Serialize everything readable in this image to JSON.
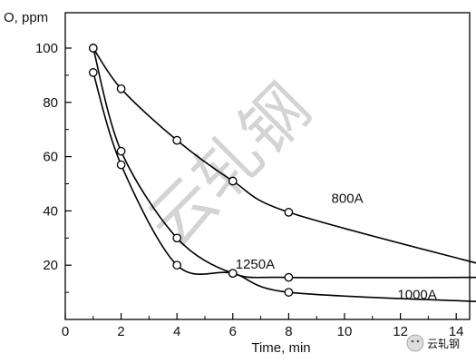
{
  "chart_data": {
    "type": "line",
    "title": "",
    "xlabel": "Time, min",
    "ylabel": "O, ppm",
    "xlim": [
      0,
      15
    ],
    "ylim": [
      0,
      110
    ],
    "x_ticks": [
      0,
      2,
      4,
      6,
      8,
      10,
      12,
      14
    ],
    "y_ticks": [
      20,
      40,
      60,
      80,
      100
    ],
    "grid": false,
    "legend": "none",
    "series": [
      {
        "name": "800A",
        "x": [
          1,
          2,
          4,
          6,
          8,
          15
        ],
        "y": [
          100,
          85,
          66,
          51,
          39.5,
          20
        ],
        "color": "#000000"
      },
      {
        "name": "1250A",
        "x": [
          1,
          2,
          4,
          6,
          8,
          15
        ],
        "y": [
          100,
          62,
          30,
          17,
          15.5,
          15.5
        ],
        "color": "#000000"
      },
      {
        "name": "1000A",
        "x": [
          1,
          2,
          4,
          6,
          8,
          15
        ],
        "y": [
          91,
          57,
          20,
          17,
          10,
          6.5
        ],
        "color": "#000000"
      }
    ]
  },
  "watermark": {
    "logo_text": "云轧钢",
    "diagonal_text": "云轧钢"
  }
}
